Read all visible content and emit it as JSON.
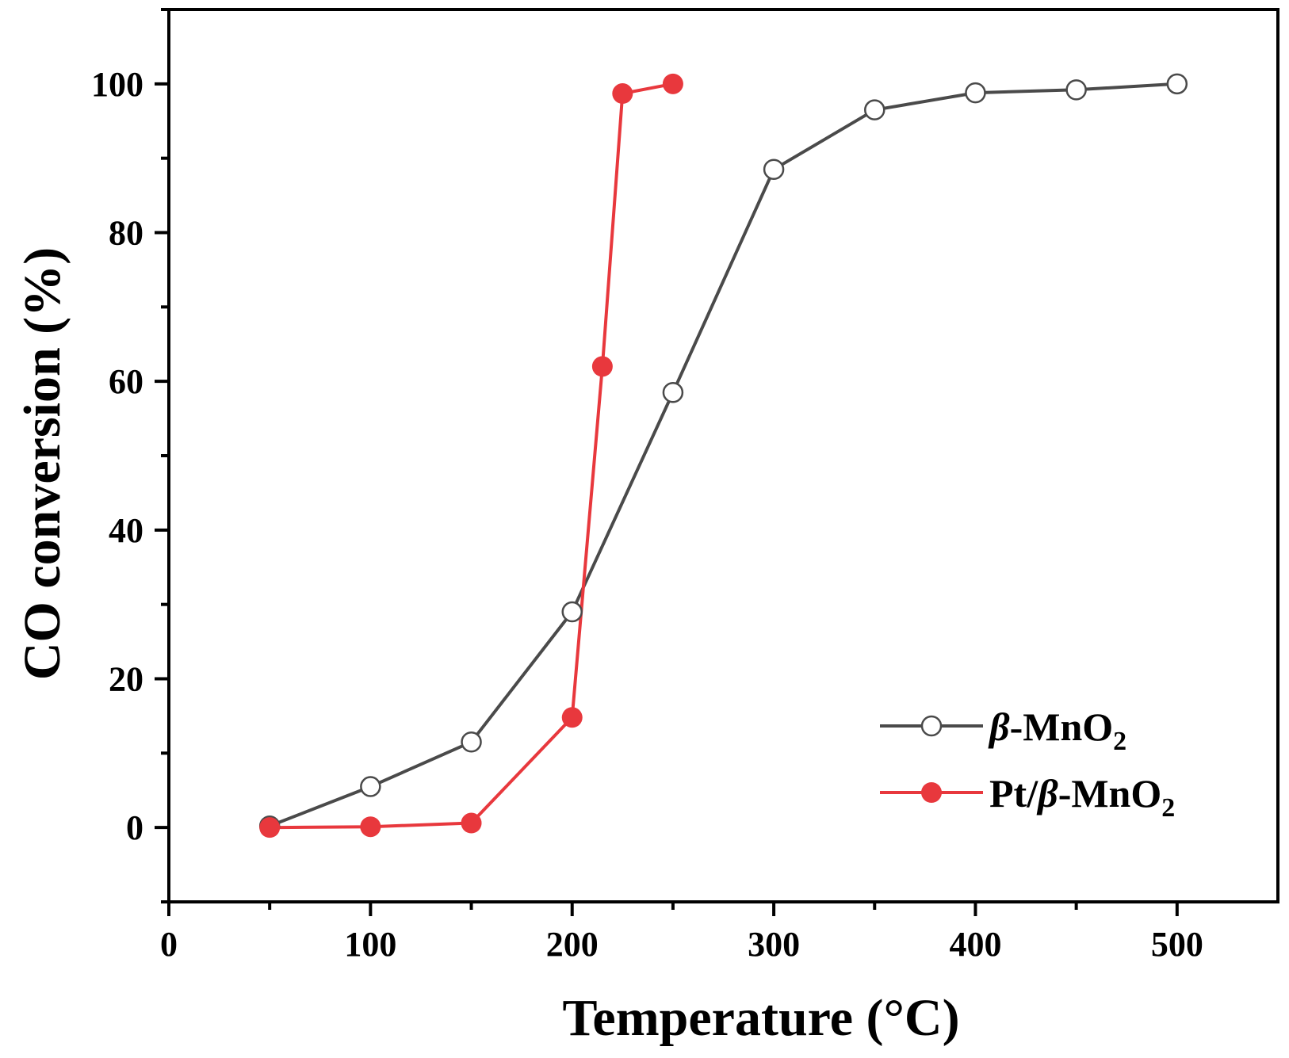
{
  "chart_data": {
    "type": "line",
    "title": "",
    "xlabel": "Temperature (°C)",
    "ylabel": "CO conversion (%)",
    "xlim": [
      0,
      550
    ],
    "ylim": [
      -10,
      110
    ],
    "xticks": [
      0,
      100,
      200,
      300,
      400,
      500
    ],
    "yticks": [
      0,
      20,
      40,
      60,
      80,
      100
    ],
    "xtick_labels": [
      "0",
      "100",
      "200",
      "300",
      "400",
      "500"
    ],
    "ytick_labels": [
      "0",
      "20",
      "40",
      "60",
      "80",
      "100"
    ],
    "grid": false,
    "legend_position": "lower-right",
    "series": [
      {
        "name": "β-MnO2",
        "legend_prefix": "β",
        "legend_main": "-MnO",
        "legend_sub": "2",
        "color": "#4a4a4a",
        "marker": "open-circle",
        "x": [
          50,
          100,
          150,
          200,
          250,
          300,
          350,
          400,
          450,
          500
        ],
        "y": [
          0.2,
          5.5,
          11.5,
          29,
          58.5,
          88.5,
          96.5,
          98.8,
          99.2,
          100
        ]
      },
      {
        "name": "Pt/β-MnO2",
        "legend_prefix": "Pt/",
        "legend_italic": "β",
        "legend_main": "-MnO",
        "legend_sub": "2",
        "color": "#e8383d",
        "marker": "filled-circle",
        "x": [
          50,
          100,
          150,
          200,
          215,
          225,
          250
        ],
        "y": [
          0,
          0.1,
          0.6,
          14.8,
          62,
          98.7,
          100
        ]
      }
    ]
  }
}
